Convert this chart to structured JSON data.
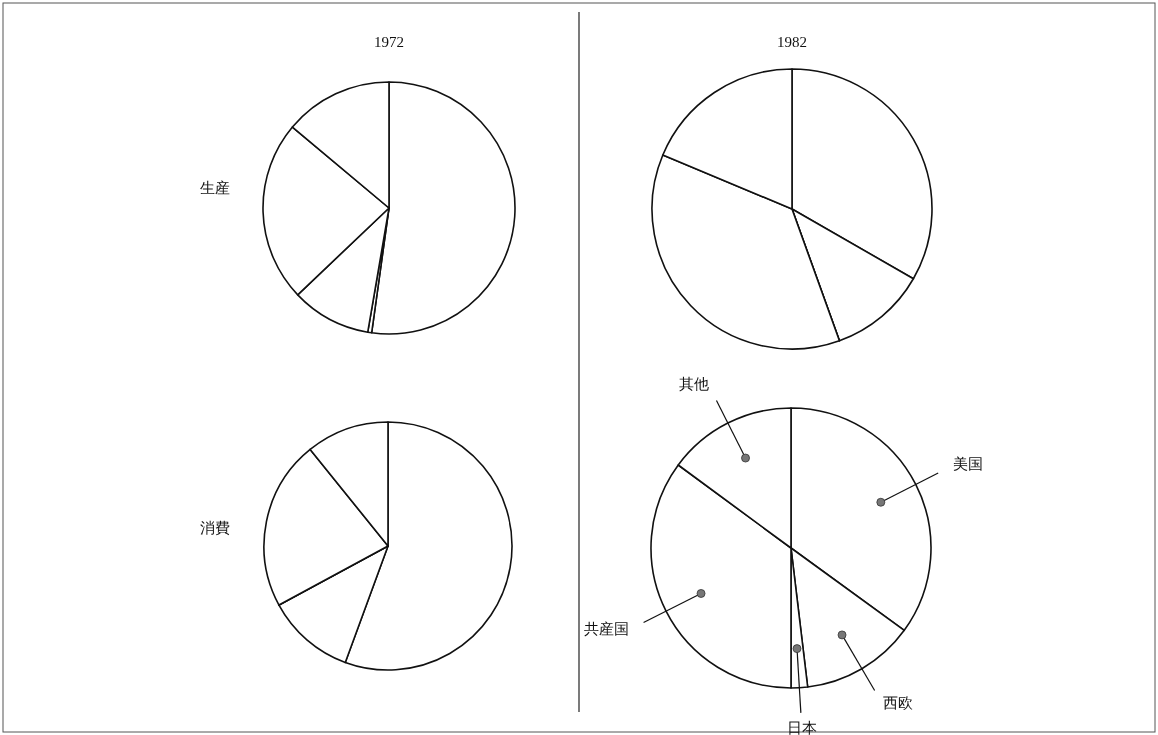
{
  "chart_data": [
    {
      "type": "pie",
      "title": "1972",
      "annotations": [
        "生産"
      ],
      "categories": [
        null,
        null,
        null,
        null,
        null
      ],
      "values": [
        52.2,
        0.5,
        10.2,
        23.2,
        13.9
      ],
      "colors": [
        "#ffffff",
        "#ffffff",
        "#ffffff",
        "#ffffff",
        "#ffffff"
      ]
    },
    {
      "type": "pie",
      "title": "1982",
      "categories": [
        null,
        null,
        null,
        null,
        null
      ],
      "values": [
        33.3,
        11.2,
        0,
        36.8,
        18.7
      ],
      "colors": [
        "#ffffff",
        "#ffffff",
        "#ffffff",
        "#ffffff",
        "#ffffff"
      ]
    },
    {
      "type": "pie",
      "annotations": [
        "消費"
      ],
      "categories": [
        null,
        null,
        null,
        null,
        null
      ],
      "values": [
        55.6,
        11.5,
        0,
        22.1,
        10.8
      ],
      "colors": [
        "#ffffff",
        "#ffffff",
        "#ffffff",
        "#ffffff",
        "#ffffff"
      ]
    },
    {
      "type": "pie",
      "categories": [
        "美国",
        "西欧",
        "日本",
        "共産国",
        "其他"
      ],
      "values": [
        35.0,
        13.1,
        1.9,
        35.1,
        14.9
      ],
      "colors": [
        "#ffffff",
        "#ffffff",
        "#ffffff",
        "#ffffff",
        "#ffffff"
      ]
    }
  ]
}
